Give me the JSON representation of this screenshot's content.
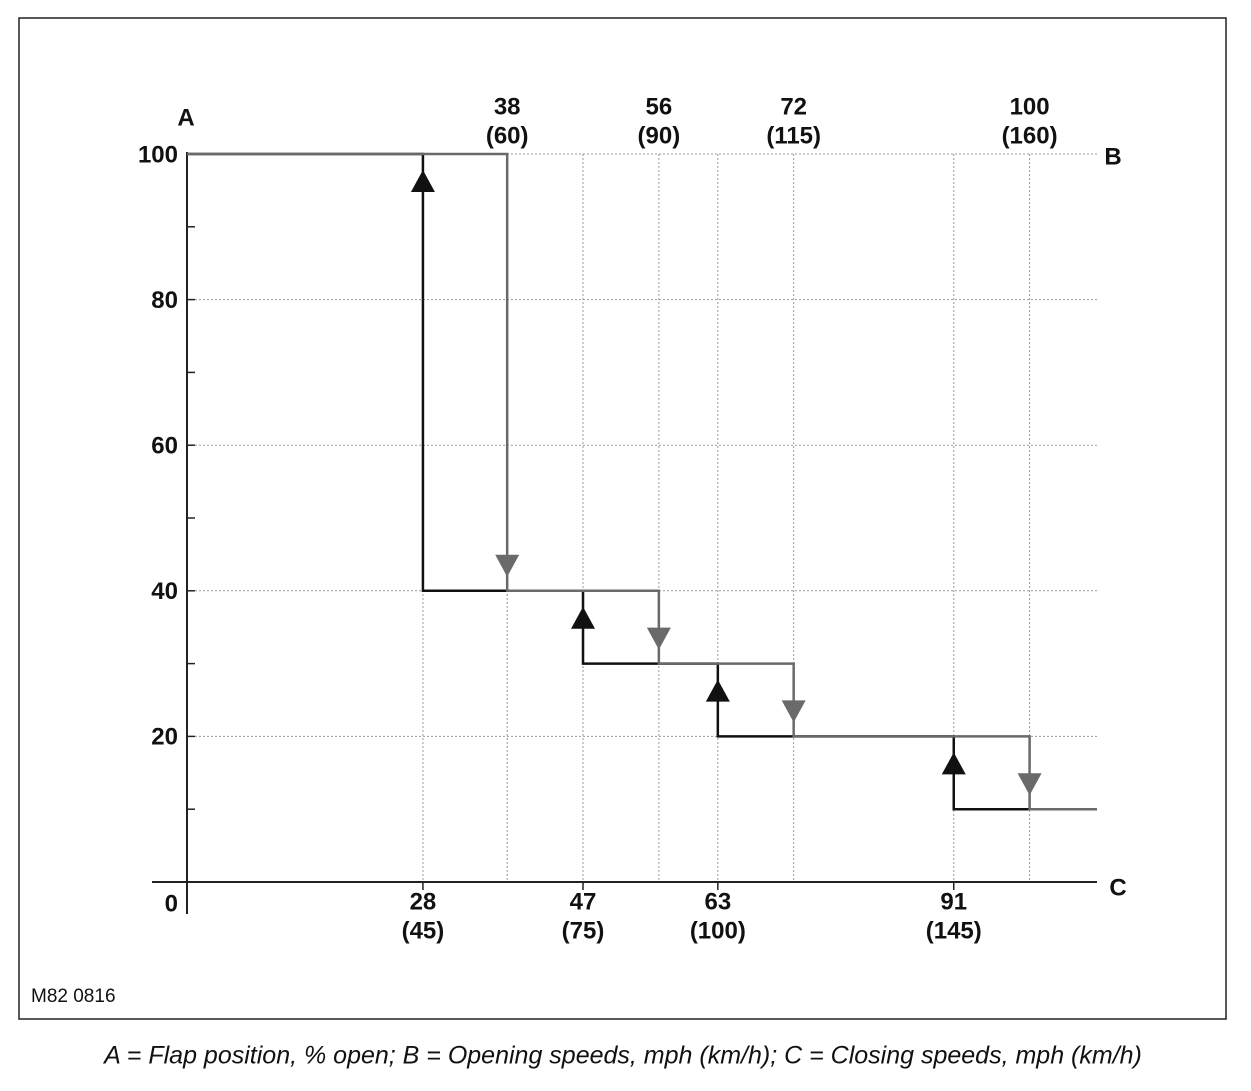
{
  "chart_data": {
    "type": "step",
    "y_axis_label": "A",
    "x2_axis_label": "B",
    "x_axis_label": "C",
    "figure_code": "M82 0816",
    "caption": "A = Flap position, % open; B = Opening speeds, mph (km/h); C = Closing speeds, mph (km/h)",
    "xlim": [
      0,
      108
    ],
    "ylim": [
      0,
      100
    ],
    "yticks": [
      0,
      20,
      40,
      60,
      80,
      100
    ],
    "yminor": [
      10,
      30,
      50,
      70,
      90
    ],
    "xticks": [
      28,
      47,
      63,
      91
    ],
    "xticks_secondary": [
      "(45)",
      "(75)",
      "(100)",
      "(145)"
    ],
    "x2ticks": [
      38,
      56,
      72,
      100
    ],
    "x2ticks_secondary": [
      "(60)",
      "(90)",
      "(115)",
      "(160)"
    ],
    "grid": true,
    "series": [
      {
        "color": "#111111",
        "direction": "up",
        "x": [
          0,
          28,
          28,
          47,
          47,
          63,
          63,
          91,
          91,
          108
        ],
        "values": [
          100,
          100,
          40,
          40,
          30,
          30,
          20,
          20,
          10,
          10
        ]
      },
      {
        "color": "#6a6a6a",
        "direction": "down",
        "x": [
          0,
          38,
          38,
          56,
          56,
          72,
          72,
          100,
          100,
          108
        ],
        "values": [
          100,
          100,
          40,
          40,
          30,
          30,
          20,
          20,
          10,
          10
        ]
      }
    ]
  }
}
